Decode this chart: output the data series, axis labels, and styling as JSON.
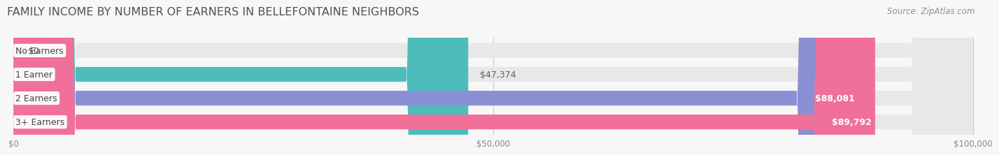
{
  "title": "Family Income by Number of Earners in Bellefontaine Neighbors",
  "title_upper": "FAMILY INCOME BY NUMBER OF EARNERS IN BELLEFONTAINE NEIGHBORS",
  "source": "Source: ZipAtlas.com",
  "categories": [
    "No Earners",
    "1 Earner",
    "2 Earners",
    "3+ Earners"
  ],
  "values": [
    0,
    47374,
    88081,
    89792
  ],
  "labels": [
    "$0",
    "$47,374",
    "$88,081",
    "$89,792"
  ],
  "bar_colors": [
    "#c9a0c8",
    "#4dbdbb",
    "#8b8fd4",
    "#f0709a"
  ],
  "bar_bg_color": "#e8e8e8",
  "xlim_max": 100000,
  "xtick_values": [
    0,
    50000,
    100000
  ],
  "xtick_labels": [
    "$0",
    "$50,000",
    "$100,000"
  ],
  "bg_color": "#f7f7f7",
  "title_color": "#505050",
  "title_fontsize": 11.5,
  "bar_label_inside_color": "#ffffff",
  "bar_label_outside_color": "#606060",
  "source_color": "#909090",
  "source_fontsize": 8.5,
  "cat_label_fontsize": 9,
  "value_label_fontsize": 9
}
